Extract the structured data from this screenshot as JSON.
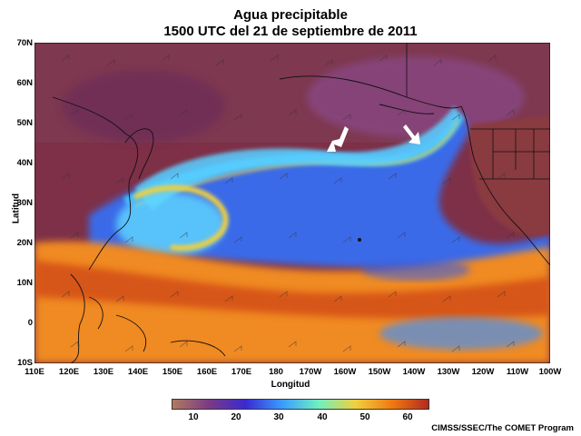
{
  "title": {
    "line1": "Agua precipitable",
    "line2": "1500 UTC del 21 de septiembre de 2011"
  },
  "axes": {
    "ylabel": "Latitud",
    "xlabel": "Longitud",
    "lat_ticks": [
      "70N",
      "60N",
      "50N",
      "40N",
      "30N",
      "20N",
      "10N",
      "0",
      "10S"
    ],
    "lon_ticks": [
      "110E",
      "120E",
      "130E",
      "140E",
      "150E",
      "160E",
      "170E",
      "180",
      "170W",
      "160W",
      "150W",
      "140W",
      "130W",
      "120W",
      "110W",
      "100W"
    ]
  },
  "colorbar": {
    "labels": [
      "10",
      "20",
      "30",
      "40",
      "50",
      "60"
    ],
    "colors": [
      "#b07a60",
      "#7a3a86",
      "#3a2ad0",
      "#3a9cff",
      "#70f0c0",
      "#f0d040",
      "#f07a10",
      "#b02a20"
    ]
  },
  "credit": "CIMSS/SSEC/The COMET Program",
  "annotations": [
    {
      "name": "arrow-west"
    },
    {
      "name": "arrow-east"
    }
  ]
}
